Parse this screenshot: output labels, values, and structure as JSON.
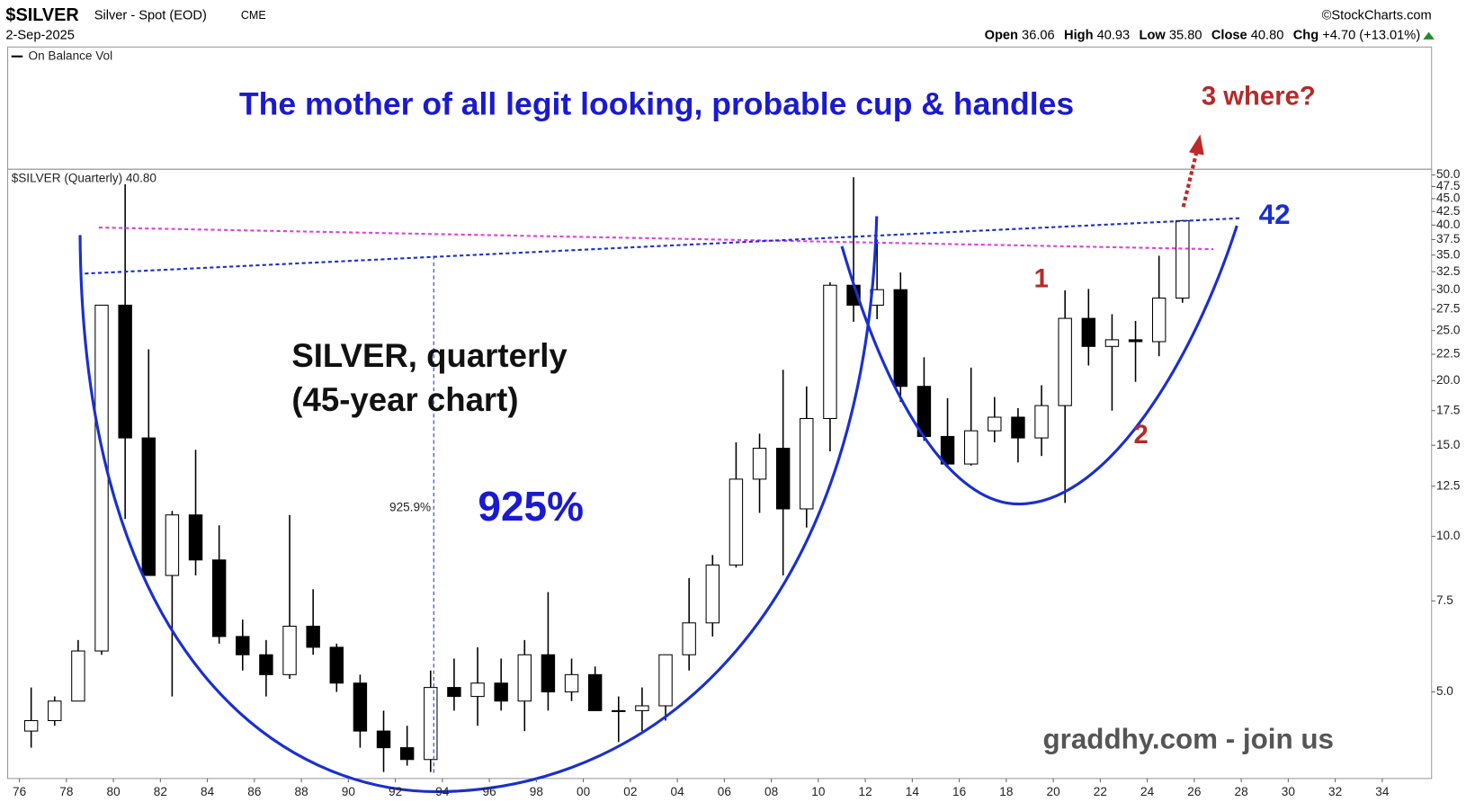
{
  "chart_data": {
    "type": "candlestick",
    "header": {
      "symbol": "$SILVER",
      "name": "Silver - Spot (EOD)",
      "exchange": "CME",
      "source": "©StockCharts.com",
      "date": "2-Sep-2025",
      "open_label": "Open",
      "open": "36.06",
      "high_label": "High",
      "high": "40.93",
      "low_label": "Low",
      "low": "35.80",
      "close_label": "Close",
      "close": "40.80",
      "chg_label": "Chg",
      "chg": "+4.70 (+13.01%)"
    },
    "indicator_label": "On Balance Vol",
    "series_label": "$SILVER (Quarterly) 40.80",
    "title": "The mother of all legit looking, probable cup & handles",
    "annotations": {
      "target": "3 where?",
      "level": "42",
      "point1": "1",
      "point2": "2",
      "subtitle1": "SILVER, quarterly",
      "subtitle2": "(45-year chart)",
      "measure": "925.9%",
      "gain": "925%",
      "watermark": "graddhy.com - join us"
    },
    "x": [
      1976,
      1977,
      1978,
      1979,
      1980,
      1981,
      1982,
      1983,
      1984,
      1985,
      1986,
      1987,
      1988,
      1989,
      1990,
      1991,
      1992,
      1993,
      1994,
      1995,
      1996,
      1997,
      1998,
      1999,
      2000,
      2001,
      2002,
      2003,
      2004,
      2005,
      2006,
      2007,
      2008,
      2009,
      2010,
      2011,
      2012,
      2013,
      2014,
      2015,
      2016,
      2017,
      2018,
      2019,
      2020,
      2021,
      2022,
      2023,
      2024,
      2025
    ],
    "open": [
      4.2,
      4.4,
      4.8,
      6.0,
      28,
      15.5,
      8.4,
      11,
      9,
      6.4,
      5.9,
      5.4,
      6.7,
      6.1,
      5.2,
      4.2,
      3.9,
      3.7,
      5.1,
      4.9,
      5.2,
      4.8,
      5.9,
      5,
      5.4,
      4.6,
      4.6,
      4.7,
      5.9,
      6.8,
      8.8,
      12.9,
      14.8,
      11.3,
      16.9,
      30.6,
      28,
      30,
      19.5,
      15.6,
      13.8,
      16,
      17,
      15.5,
      17.9,
      26.4,
      23.3,
      24,
      23.8,
      28.9
    ],
    "high": [
      5.1,
      4.9,
      6.3,
      28,
      48,
      23,
      11.2,
      14.7,
      10.5,
      6.9,
      6.3,
      11,
      7.9,
      6.2,
      5.4,
      4.6,
      4.3,
      5.5,
      5.8,
      6.1,
      5.8,
      6.3,
      7.8,
      5.8,
      5.6,
      4.9,
      5.1,
      5.9,
      8.3,
      9.2,
      15.2,
      15.8,
      21,
      19.5,
      31,
      49.5,
      37.5,
      32.4,
      22.2,
      18.5,
      21.2,
      18.6,
      17.7,
      19.6,
      29.9,
      30.1,
      26.9,
      26.1,
      34.9,
      40.93
    ],
    "low": [
      3.9,
      4.3,
      4.8,
      5.9,
      10.8,
      8.5,
      4.9,
      8.4,
      6.2,
      5.5,
      4.9,
      5.3,
      5.9,
      5,
      3.9,
      3.5,
      3.6,
      3.5,
      4.6,
      4.3,
      4.6,
      4.2,
      4.6,
      4.8,
      4.6,
      4,
      4.2,
      4.4,
      5.5,
      6.4,
      8.7,
      11.1,
      8.4,
      10.4,
      14.6,
      26,
      26.3,
      18.2,
      15.3,
      13.6,
      13.7,
      15.2,
      13.9,
      14.3,
      11.6,
      21.4,
      17.5,
      19.9,
      22.3,
      28.3
    ],
    "close": [
      4.4,
      4.8,
      6.0,
      28,
      15.5,
      8.4,
      11,
      9,
      6.4,
      5.9,
      5.4,
      6.7,
      6.1,
      5.2,
      4.2,
      3.9,
      3.7,
      5.1,
      4.9,
      5.2,
      4.8,
      5.9,
      5,
      5.4,
      4.6,
      4.6,
      4.7,
      5.9,
      6.8,
      8.8,
      12.9,
      14.8,
      11.3,
      16.9,
      30.6,
      28,
      30,
      19.5,
      15.6,
      13.8,
      16,
      17,
      15.5,
      17.9,
      26.4,
      23.3,
      24,
      23.8,
      28.9,
      40.8
    ],
    "up_color": "#ffffff",
    "down_color": "#000000",
    "wick_color": "#000000",
    "log_scale": true,
    "grid": false,
    "xlim": [
      1975.5,
      2036.1
    ],
    "xticks": [
      {
        "value": 1976,
        "label": "76"
      },
      {
        "value": 1978,
        "label": "78"
      },
      {
        "value": 1980,
        "label": "80"
      },
      {
        "value": 1982,
        "label": "82"
      },
      {
        "value": 1984,
        "label": "84"
      },
      {
        "value": 1986,
        "label": "86"
      },
      {
        "value": 1988,
        "label": "88"
      },
      {
        "value": 1990,
        "label": "90"
      },
      {
        "value": 1992,
        "label": "92"
      },
      {
        "value": 1994,
        "label": "94"
      },
      {
        "value": 1996,
        "label": "96"
      },
      {
        "value": 1998,
        "label": "98"
      },
      {
        "value": 2000,
        "label": "00"
      },
      {
        "value": 2002,
        "label": "02"
      },
      {
        "value": 2004,
        "label": "04"
      },
      {
        "value": 2006,
        "label": "06"
      },
      {
        "value": 2008,
        "label": "08"
      },
      {
        "value": 2010,
        "label": "10"
      },
      {
        "value": 2012,
        "label": "12"
      },
      {
        "value": 2014,
        "label": "14"
      },
      {
        "value": 2016,
        "label": "16"
      },
      {
        "value": 2018,
        "label": "18"
      },
      {
        "value": 2020,
        "label": "20"
      },
      {
        "value": 2022,
        "label": "22"
      },
      {
        "value": 2024,
        "label": "24"
      },
      {
        "value": 2026,
        "label": "26"
      },
      {
        "value": 2028,
        "label": "28"
      },
      {
        "value": 2030,
        "label": "30"
      },
      {
        "value": 2032,
        "label": "32"
      },
      {
        "value": 2034,
        "label": "34"
      }
    ],
    "ylim": [
      3.4,
      51.3
    ],
    "yticks": [
      {
        "value": 5,
        "label": "5.0"
      },
      7.5,
      {
        "value": 10,
        "label": "10.0"
      },
      12.5,
      {
        "value": 15,
        "label": "15.0"
      },
      17.5,
      {
        "value": 20,
        "label": "20.0"
      },
      22.5,
      {
        "value": 25,
        "label": "25.0"
      },
      27.5,
      {
        "value": 30,
        "label": "30.0"
      },
      32.5,
      {
        "value": 35,
        "label": "35.0"
      },
      37.5,
      {
        "value": 40,
        "label": "40.0"
      },
      42.5,
      {
        "value": 45,
        "label": "45.0"
      },
      47.5,
      {
        "value": 50,
        "label": "50.0"
      }
    ]
  }
}
